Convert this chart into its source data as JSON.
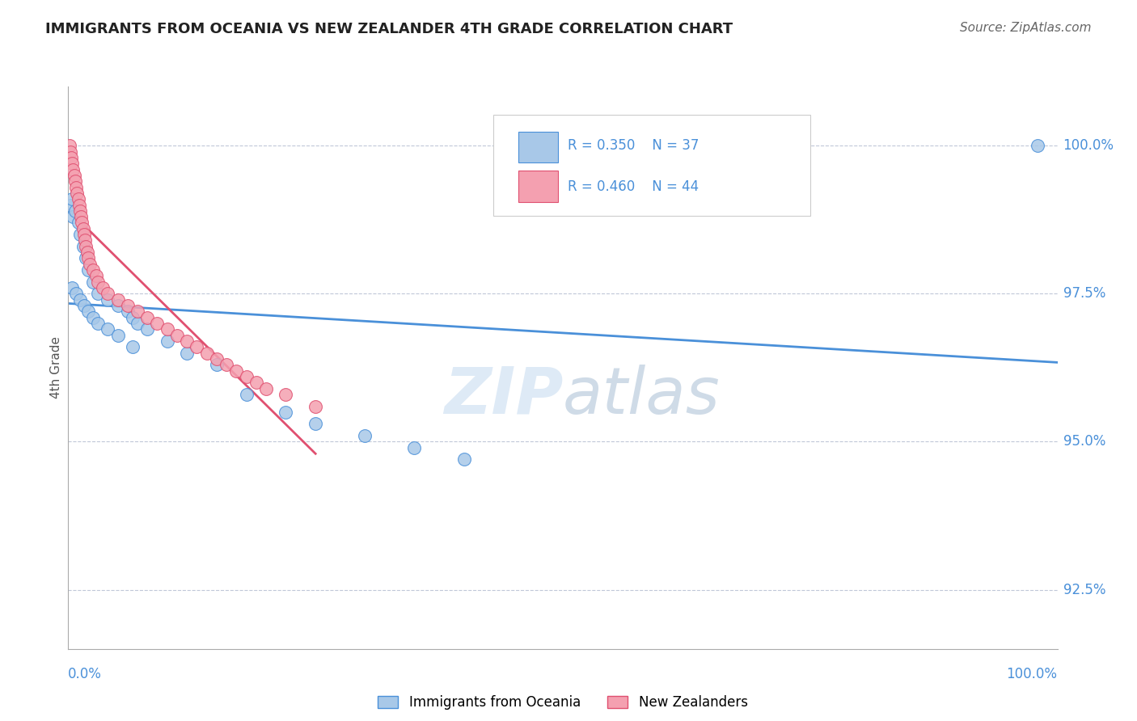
{
  "title": "IMMIGRANTS FROM OCEANIA VS NEW ZEALANDER 4TH GRADE CORRELATION CHART",
  "source": "Source: ZipAtlas.com",
  "ylabel": "4th Grade",
  "ylabel_right_ticks": [
    100.0,
    97.5,
    95.0,
    92.5
  ],
  "legend_blue_label": "Immigrants from Oceania",
  "legend_pink_label": "New Zealanders",
  "legend_R_blue": "R = 0.350",
  "legend_N_blue": "N = 37",
  "legend_R_pink": "R = 0.460",
  "legend_N_pink": "N = 44",
  "blue_color": "#a8c8e8",
  "pink_color": "#f4a0b0",
  "trendline_blue_color": "#4a90d9",
  "trendline_pink_color": "#e05070",
  "legend_text_color": "#4a90d9",
  "axis_label_color": "#4a90d9",
  "background_color": "#ffffff",
  "watermark_zip": "ZIP",
  "watermark_atlas": "atlas",
  "blue_x": [
    0.002,
    0.004,
    0.005,
    0.007,
    0.01,
    0.012,
    0.015,
    0.018,
    0.02,
    0.025,
    0.03,
    0.04,
    0.05,
    0.06,
    0.065,
    0.07,
    0.08,
    0.1,
    0.12,
    0.15,
    0.18,
    0.22,
    0.25,
    0.3,
    0.35,
    0.4,
    0.004,
    0.008,
    0.012,
    0.016,
    0.02,
    0.025,
    0.03,
    0.04,
    0.05,
    0.065,
    0.98
  ],
  "blue_y": [
    99.0,
    99.1,
    98.8,
    98.9,
    98.7,
    98.5,
    98.3,
    98.1,
    97.9,
    97.7,
    97.5,
    97.4,
    97.3,
    97.2,
    97.1,
    97.0,
    96.9,
    96.7,
    96.5,
    96.3,
    95.8,
    95.5,
    95.3,
    95.1,
    94.9,
    94.7,
    97.6,
    97.5,
    97.4,
    97.3,
    97.2,
    97.1,
    97.0,
    96.9,
    96.8,
    96.6,
    100.0
  ],
  "pink_x": [
    0.001,
    0.002,
    0.003,
    0.004,
    0.005,
    0.006,
    0.007,
    0.008,
    0.009,
    0.01,
    0.011,
    0.012,
    0.013,
    0.014,
    0.015,
    0.016,
    0.017,
    0.018,
    0.019,
    0.02,
    0.022,
    0.025,
    0.028,
    0.03,
    0.035,
    0.04,
    0.05,
    0.06,
    0.07,
    0.08,
    0.09,
    0.1,
    0.11,
    0.12,
    0.13,
    0.14,
    0.15,
    0.16,
    0.17,
    0.18,
    0.19,
    0.2,
    0.22,
    0.25
  ],
  "pink_y": [
    100.0,
    99.9,
    99.8,
    99.7,
    99.6,
    99.5,
    99.4,
    99.3,
    99.2,
    99.1,
    99.0,
    98.9,
    98.8,
    98.7,
    98.6,
    98.5,
    98.4,
    98.3,
    98.2,
    98.1,
    98.0,
    97.9,
    97.8,
    97.7,
    97.6,
    97.5,
    97.4,
    97.3,
    97.2,
    97.1,
    97.0,
    96.9,
    96.8,
    96.7,
    96.6,
    96.5,
    96.4,
    96.3,
    96.2,
    96.1,
    96.0,
    95.9,
    95.8,
    95.6
  ],
  "xlim": [
    0,
    1.0
  ],
  "ylim": [
    91.5,
    101.0
  ]
}
